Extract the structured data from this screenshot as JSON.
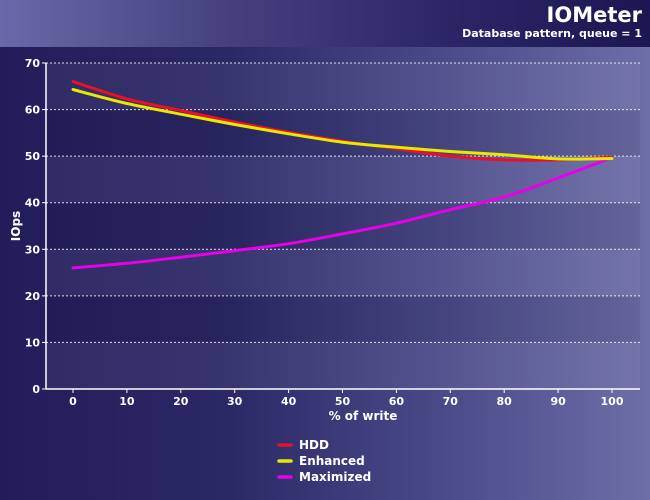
{
  "header": {
    "title": "IOMeter",
    "subtitle": "Database pattern, queue = 1"
  },
  "chart_data": {
    "type": "line",
    "title": "IOMeter",
    "subtitle": "Database pattern, queue = 1",
    "xlabel": "% of write",
    "ylabel": "IOps",
    "x": [
      0,
      10,
      20,
      30,
      40,
      50,
      60,
      70,
      80,
      90,
      100
    ],
    "xlim": [
      0,
      100
    ],
    "ylim": [
      0,
      70
    ],
    "xticks": [
      "0",
      "10",
      "20",
      "30",
      "40",
      "50",
      "60",
      "70",
      "80",
      "90",
      "100"
    ],
    "yticks": [
      "0",
      "10",
      "20",
      "30",
      "40",
      "50",
      "60",
      "70"
    ],
    "grid": true,
    "legend_position": "bottom-center",
    "series": [
      {
        "name": "HDD",
        "color": "#e8102a",
        "values": [
          66,
          62.3,
          59.8,
          57.3,
          55.1,
          53.2,
          51.6,
          50,
          49.2,
          49.2,
          49.8
        ]
      },
      {
        "name": "Enhanced",
        "color": "#e8e800",
        "values": [
          64.3,
          61.3,
          59,
          56.8,
          54.8,
          53,
          51.9,
          51,
          50.3,
          49.4,
          49.5
        ]
      },
      {
        "name": "Maximized",
        "color": "#e800e8",
        "values": [
          26,
          27,
          28.3,
          29.7,
          31.2,
          33.3,
          35.6,
          38.5,
          41.2,
          45.3,
          49.7
        ]
      }
    ]
  }
}
